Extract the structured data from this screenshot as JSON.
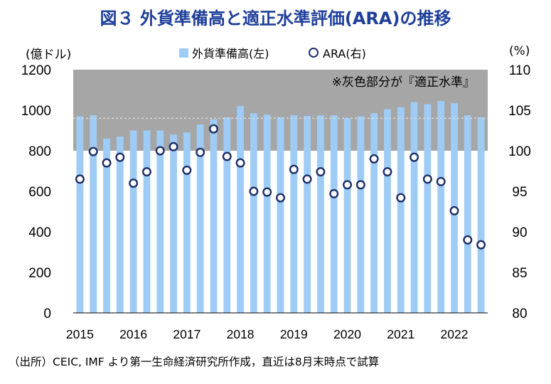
{
  "title": "図３ 外貨準備高と適正水準評価(ARA)の推移",
  "source": "（出所）CEIC, IMF より第一生命経済研究所作成，直近は8月末時点で試算",
  "chart_data": {
    "type": "bar",
    "title": "図３ 外貨準備高と適正水準評価(ARA)の推移",
    "left_axis": {
      "unit": "(億ドル)",
      "ylim": [
        0,
        1200
      ],
      "ticks": [
        "0",
        "200",
        "400",
        "600",
        "800",
        "1000",
        "1200"
      ]
    },
    "right_axis": {
      "unit": "(%)",
      "ylim": [
        80,
        110
      ],
      "ticks": [
        "80",
        "85",
        "90",
        "95",
        "100",
        "105",
        "110"
      ]
    },
    "x_tick_labels": [
      "2015",
      "2016",
      "2017",
      "2018",
      "2019",
      "2020",
      "2021",
      "2022"
    ],
    "shaded_band": {
      "label": "※灰色部分が『適正水準』",
      "axis": "right",
      "range": [
        100,
        110
      ],
      "color": "#a6a6a6"
    },
    "reference_line": {
      "axis": "right",
      "value": 104,
      "style": "dotted"
    },
    "series": [
      {
        "name": "外貨準備高(左)",
        "type": "bar",
        "axis": "left",
        "color": "#9fccf5",
        "values": [
          970,
          975,
          860,
          870,
          900,
          900,
          900,
          880,
          890,
          930,
          955,
          965,
          1020,
          985,
          978,
          965,
          975,
          972,
          975,
          975,
          962,
          970,
          985,
          1005,
          1015,
          1040,
          1030,
          1045,
          1035,
          975,
          965
        ]
      },
      {
        "name": "ARA(右)",
        "type": "scatter",
        "axis": "right",
        "color": "#1c2e66",
        "values": [
          96.5,
          99.9,
          98.5,
          99.2,
          96.0,
          97.4,
          100.0,
          100.5,
          97.6,
          99.8,
          102.7,
          99.3,
          98.5,
          95.0,
          94.9,
          94.2,
          97.7,
          96.5,
          97.4,
          94.7,
          95.8,
          95.8,
          99.0,
          97.4,
          94.2,
          99.2,
          96.5,
          96.2,
          92.6,
          89.0,
          88.4
        ]
      }
    ]
  }
}
